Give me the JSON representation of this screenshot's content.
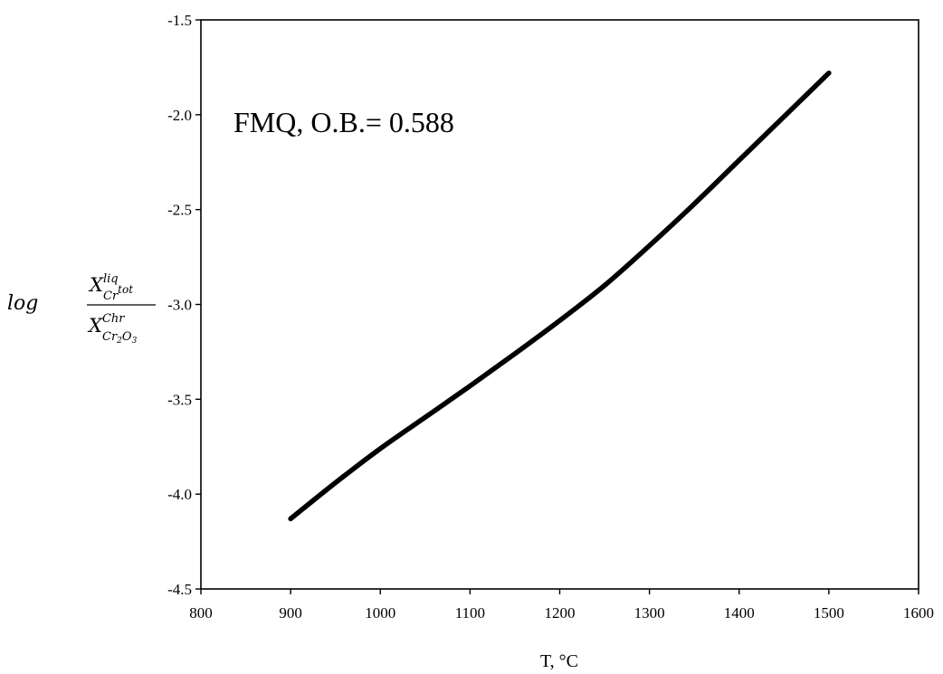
{
  "chart_data": {
    "type": "line",
    "x": [
      900,
      950,
      1000,
      1050,
      1100,
      1150,
      1200,
      1250,
      1300,
      1350,
      1400,
      1450,
      1500
    ],
    "series": [
      {
        "values": [
          -4.13,
          -3.94,
          -3.76,
          -3.595,
          -3.43,
          -3.26,
          -3.085,
          -2.9,
          -2.69,
          -2.47,
          -2.24,
          -2.01,
          -1.78
        ],
        "color": "#000000"
      }
    ],
    "xlim": [
      800,
      1600
    ],
    "ylim": [
      -4.5,
      -1.5
    ],
    "xticks": [
      "800",
      "900",
      "1000",
      "1100",
      "1200",
      "1300",
      "1400",
      "1500",
      "1600"
    ],
    "yticks": [
      "-4.5",
      "-4.0",
      "-3.5",
      "-3.0",
      "-2.5",
      "-2.0",
      "-1.5"
    ],
    "xlabel": "T, °C",
    "ylabel": {
      "prefix": "log",
      "num_base": "X",
      "num_sup": "liq",
      "num_sub": "Cr",
      "num_subsup": "tot",
      "den_base": "X",
      "den_sup": "Chr",
      "den_sub_a": "Cr",
      "den_sub_a_idx": "2",
      "den_sub_b": "O",
      "den_sub_b_idx": "3"
    },
    "annotation": "FMQ, O.B.= 0.588",
    "grid": false
  }
}
